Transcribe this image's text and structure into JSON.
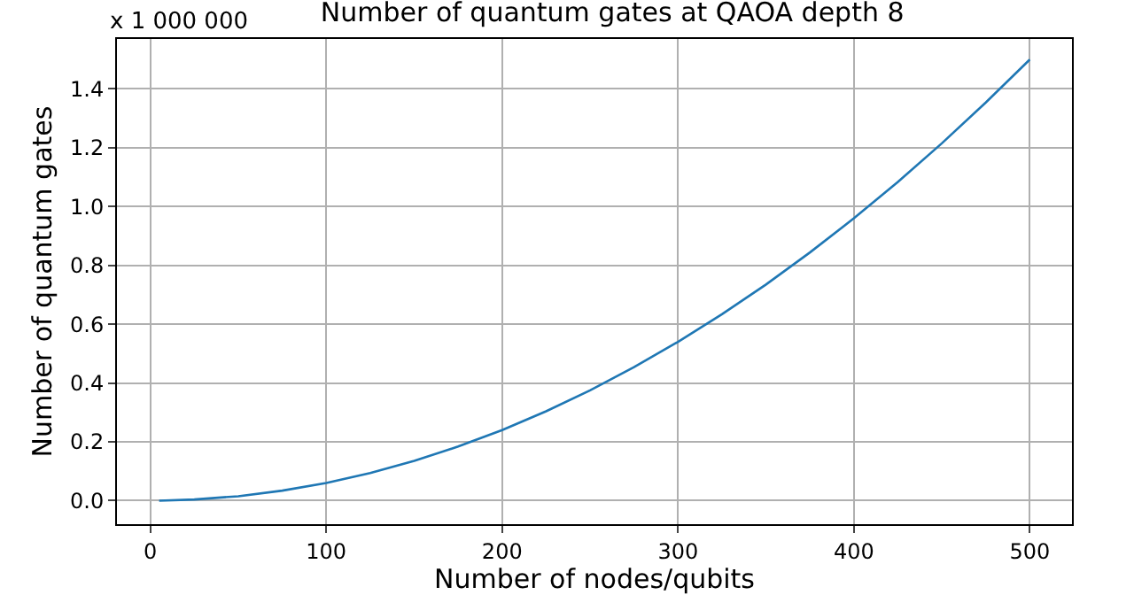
{
  "chart_data": {
    "type": "line",
    "title": "Number of quantum gates at QAOA depth 8",
    "xlabel": "Number of nodes/qubits",
    "ylabel": "Number of quantum gates",
    "annotations": [
      "x 1 000 000"
    ],
    "x": [
      5,
      25,
      50,
      75,
      100,
      125,
      150,
      175,
      200,
      225,
      250,
      275,
      300,
      325,
      350,
      375,
      400,
      425,
      450,
      475,
      500
    ],
    "series": [
      {
        "color": "#1f77b4",
        "values": [
          0.0,
          0.004,
          0.015,
          0.034,
          0.06,
          0.094,
          0.135,
          0.184,
          0.24,
          0.304,
          0.375,
          0.454,
          0.54,
          0.634,
          0.735,
          0.844,
          0.96,
          1.084,
          1.215,
          1.354,
          1.5
        ]
      }
    ],
    "xlim": [
      -19,
      524
    ],
    "xticks": [
      0,
      100,
      200,
      300,
      400,
      500
    ],
    "ylim": [
      -0.08,
      1.57
    ],
    "yticks": [
      {
        "value": 0,
        "label": "0.0"
      },
      0.2,
      0.4,
      0.6,
      0.8,
      {
        "value": 1,
        "label": "1.0"
      },
      1.2,
      1.4
    ],
    "grid": true,
    "marker": "none",
    "line_style": "solid"
  }
}
